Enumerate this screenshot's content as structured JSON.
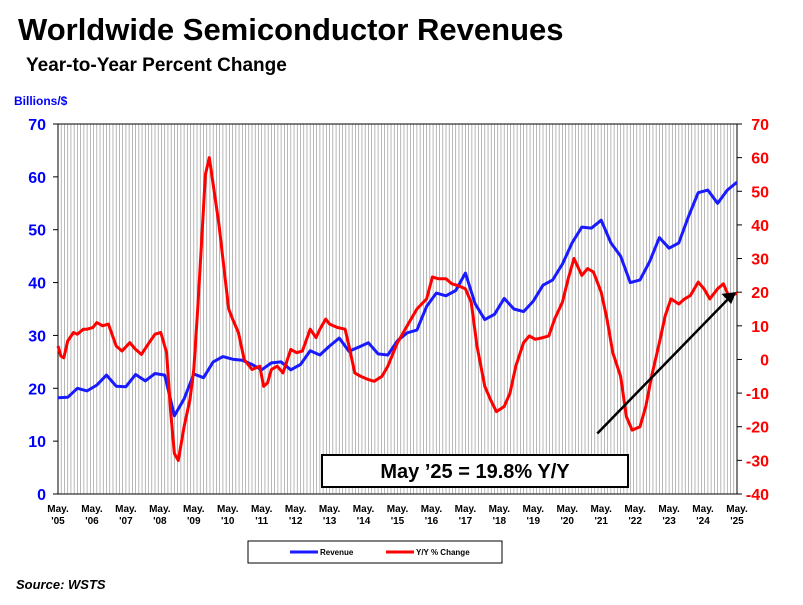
{
  "title": "Worldwide Semiconductor Revenues",
  "subtitle": "Year-to-Year Percent Change",
  "source": "Source: WSTS",
  "callout": "May ’25 = 19.8% Y/Y",
  "colors": {
    "revenue": "#1a1aff",
    "yoy": "#ff0000",
    "grid": "#999999",
    "axis": "#000000"
  },
  "chart_data": {
    "type": "line",
    "ylabel": "Billions/$",
    "ylim": [
      0,
      70
    ],
    "y2lim": [
      -40,
      70
    ],
    "yticks": [
      0,
      10,
      20,
      30,
      40,
      50,
      60,
      70
    ],
    "y2ticks": [
      -40,
      -30,
      -20,
      -10,
      0,
      10,
      20,
      30,
      40,
      50,
      60,
      70
    ],
    "x_tick_labels": [
      [
        "May.",
        "'05"
      ],
      [
        "May.",
        "'06"
      ],
      [
        "May.",
        "'07"
      ],
      [
        "May.",
        "'08"
      ],
      [
        "May.",
        "'09"
      ],
      [
        "May.",
        "'10"
      ],
      [
        "May.",
        "'11"
      ],
      [
        "May.",
        "'12"
      ],
      [
        "May.",
        "'13"
      ],
      [
        "May.",
        "'14"
      ],
      [
        "May.",
        "'15"
      ],
      [
        "May.",
        "'16"
      ],
      [
        "May.",
        "'17"
      ],
      [
        "May.",
        "'18"
      ],
      [
        "May.",
        "'19"
      ],
      [
        "May.",
        "'20"
      ],
      [
        "May.",
        "'21"
      ],
      [
        "May.",
        "'22"
      ],
      [
        "May.",
        "'23"
      ],
      [
        "May.",
        "'24"
      ],
      [
        "May.",
        "'25"
      ]
    ],
    "grid": "vertical lines every 2 months",
    "legend": "bottom-center",
    "series": [
      {
        "name": "Revenue",
        "axis": "left",
        "points": [
          [
            0,
            18.2
          ],
          [
            0.5,
            18.3
          ],
          [
            1,
            20.0
          ],
          [
            1.5,
            19.5
          ],
          [
            2,
            20.6
          ],
          [
            2.5,
            22.5
          ],
          [
            3,
            20.4
          ],
          [
            3.5,
            20.3
          ],
          [
            4,
            22.6
          ],
          [
            4.5,
            21.4
          ],
          [
            5,
            22.8
          ],
          [
            5.5,
            22.5
          ],
          [
            6,
            14.8
          ],
          [
            6.5,
            18.0
          ],
          [
            7,
            22.7
          ],
          [
            7.5,
            22.0
          ],
          [
            8,
            25.0
          ],
          [
            8.5,
            26.0
          ],
          [
            9,
            25.5
          ],
          [
            9.5,
            25.3
          ],
          [
            10,
            24.5
          ],
          [
            10.5,
            23.5
          ],
          [
            11,
            24.8
          ],
          [
            11.5,
            25.0
          ],
          [
            12,
            23.5
          ],
          [
            12.5,
            24.5
          ],
          [
            13,
            27.1
          ],
          [
            13.5,
            26.3
          ],
          [
            14,
            28.0
          ],
          [
            14.5,
            29.5
          ],
          [
            15,
            27.0
          ],
          [
            15.5,
            27.8
          ],
          [
            16,
            28.6
          ],
          [
            16.5,
            26.5
          ],
          [
            17,
            26.3
          ],
          [
            17.5,
            29.0
          ],
          [
            18,
            30.5
          ],
          [
            18.5,
            31.0
          ],
          [
            19,
            35.5
          ],
          [
            19.5,
            38.0
          ],
          [
            20,
            37.5
          ],
          [
            20.5,
            38.5
          ],
          [
            21,
            41.8
          ],
          [
            21.5,
            36.0
          ],
          [
            22,
            33.0
          ],
          [
            22.5,
            34.0
          ],
          [
            23,
            37.0
          ],
          [
            23.5,
            35.0
          ],
          [
            24,
            34.5
          ],
          [
            24.5,
            36.5
          ],
          [
            25,
            39.5
          ],
          [
            25.5,
            40.5
          ],
          [
            26,
            43.5
          ],
          [
            26.5,
            47.5
          ],
          [
            27,
            50.5
          ],
          [
            27.5,
            50.3
          ],
          [
            28,
            51.8
          ],
          [
            28.5,
            47.5
          ],
          [
            29,
            45.0
          ],
          [
            29.5,
            40.0
          ],
          [
            30,
            40.5
          ],
          [
            30.5,
            44.0
          ],
          [
            31,
            48.5
          ],
          [
            31.5,
            46.5
          ],
          [
            32,
            47.5
          ],
          [
            32.5,
            52.5
          ],
          [
            33,
            57.0
          ],
          [
            33.5,
            57.5
          ],
          [
            34,
            55.0
          ],
          [
            34.5,
            57.5
          ],
          [
            35,
            59.0
          ]
        ]
      },
      {
        "name": "Y/Y % Change",
        "axis": "right",
        "points": [
          [
            0,
            4.0
          ],
          [
            0.15,
            1.0
          ],
          [
            0.3,
            0.5
          ],
          [
            0.5,
            5.5
          ],
          [
            0.8,
            8.0
          ],
          [
            1,
            7.5
          ],
          [
            1.3,
            9.0
          ],
          [
            1.5,
            9.0
          ],
          [
            1.8,
            9.5
          ],
          [
            2,
            11.0
          ],
          [
            2.3,
            10.0
          ],
          [
            2.6,
            10.5
          ],
          [
            3,
            4.0
          ],
          [
            3.3,
            2.5
          ],
          [
            3.7,
            5.0
          ],
          [
            4,
            3.0
          ],
          [
            4.3,
            1.5
          ],
          [
            4.7,
            5.0
          ],
          [
            5,
            7.5
          ],
          [
            5.3,
            8.0
          ],
          [
            5.6,
            2.0
          ],
          [
            5.8,
            -15.0
          ],
          [
            6,
            -28.0
          ],
          [
            6.2,
            -30.0
          ],
          [
            6.5,
            -20.0
          ],
          [
            6.8,
            -12.0
          ],
          [
            7.0,
            -3.0
          ],
          [
            7.2,
            15.0
          ],
          [
            7.4,
            35.0
          ],
          [
            7.6,
            55.0
          ],
          [
            7.8,
            60.0
          ],
          [
            8,
            52.0
          ],
          [
            8.3,
            40.0
          ],
          [
            8.6,
            25.0
          ],
          [
            8.8,
            15.0
          ],
          [
            9,
            12.0
          ],
          [
            9.3,
            8.0
          ],
          [
            9.6,
            0.0
          ],
          [
            10,
            -3.0
          ],
          [
            10.4,
            -2.0
          ],
          [
            10.6,
            -8.0
          ],
          [
            10.8,
            -7.0
          ],
          [
            11,
            -3.0
          ],
          [
            11.3,
            -2.0
          ],
          [
            11.6,
            -4.0
          ],
          [
            12,
            3.0
          ],
          [
            12.3,
            2.0
          ],
          [
            12.6,
            2.5
          ],
          [
            13,
            9.0
          ],
          [
            13.3,
            6.5
          ],
          [
            13.5,
            9.0
          ],
          [
            13.8,
            12.0
          ],
          [
            14,
            10.5
          ],
          [
            14.4,
            9.5
          ],
          [
            14.8,
            9.0
          ],
          [
            15,
            4.0
          ],
          [
            15.3,
            -4.0
          ],
          [
            15.6,
            -5.0
          ],
          [
            16,
            -6.0
          ],
          [
            16.3,
            -6.5
          ],
          [
            16.7,
            -5.0
          ],
          [
            17,
            -2.0
          ],
          [
            17.5,
            5.0
          ],
          [
            18,
            10.0
          ],
          [
            18.5,
            15.0
          ],
          [
            19,
            18.0
          ],
          [
            19.3,
            24.5
          ],
          [
            19.6,
            24.0
          ],
          [
            20,
            24.0
          ],
          [
            20.3,
            22.5
          ],
          [
            20.6,
            22.0
          ],
          [
            21,
            21.0
          ],
          [
            21.3,
            17.0
          ],
          [
            21.6,
            4.0
          ],
          [
            22,
            -8.0
          ],
          [
            22.3,
            -12.0
          ],
          [
            22.6,
            -15.5
          ],
          [
            23,
            -14.0
          ],
          [
            23.3,
            -10.0
          ],
          [
            23.6,
            -2.0
          ],
          [
            24,
            5.0
          ],
          [
            24.3,
            7.0
          ],
          [
            24.6,
            6.0
          ],
          [
            25,
            6.5
          ],
          [
            25.3,
            7.0
          ],
          [
            25.6,
            12.0
          ],
          [
            26,
            17.0
          ],
          [
            26.3,
            24.0
          ],
          [
            26.6,
            30.0
          ],
          [
            27,
            25.0
          ],
          [
            27.3,
            27.0
          ],
          [
            27.6,
            26.0
          ],
          [
            28,
            20.0
          ],
          [
            28.3,
            12.0
          ],
          [
            28.6,
            2.0
          ],
          [
            29,
            -5.0
          ],
          [
            29.3,
            -17.0
          ],
          [
            29.6,
            -21.0
          ],
          [
            30,
            -20.0
          ],
          [
            30.3,
            -14.0
          ],
          [
            30.6,
            -5.0
          ],
          [
            31,
            5.0
          ],
          [
            31.3,
            13.0
          ],
          [
            31.6,
            18.0
          ],
          [
            32,
            16.5
          ],
          [
            32.3,
            18.0
          ],
          [
            32.6,
            19.0
          ],
          [
            33,
            23.0
          ],
          [
            33.3,
            21.0
          ],
          [
            33.6,
            18.0
          ],
          [
            34,
            21.0
          ],
          [
            34.3,
            22.5
          ],
          [
            34.6,
            18.5
          ],
          [
            35,
            19.8
          ]
        ]
      }
    ]
  }
}
